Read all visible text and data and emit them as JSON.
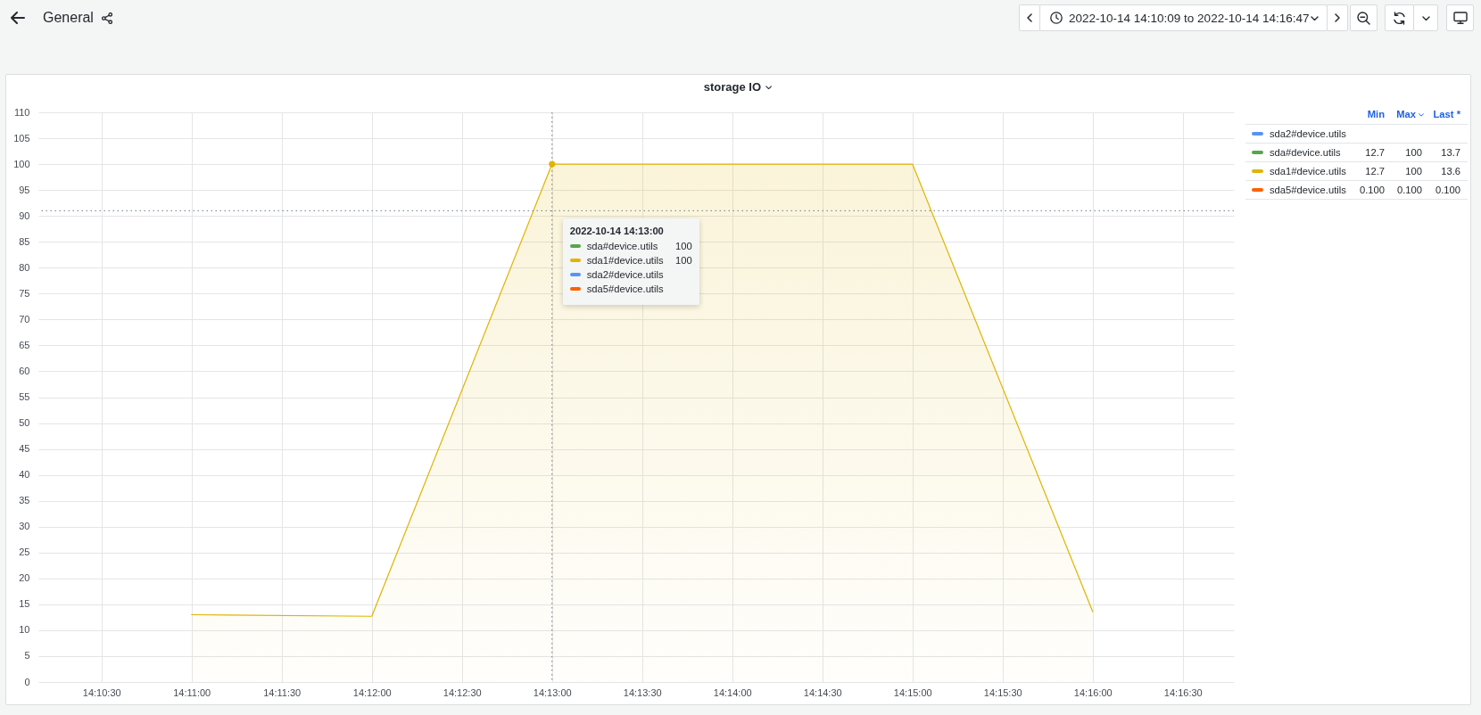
{
  "chart_data": {
    "type": "area",
    "title": "storage IO",
    "x": [
      "2022-10-14T14:11:00",
      "2022-10-14T14:12:00",
      "2022-10-14T14:13:00",
      "2022-10-14T14:14:00",
      "2022-10-14T14:15:00",
      "2022-10-14T14:16:00"
    ],
    "series": [
      {
        "name": "sda2#device.utils",
        "color": "#5794f2",
        "values": [
          null,
          null,
          null,
          null,
          null,
          null
        ]
      },
      {
        "name": "sda#device.utils",
        "color": "#56a64b",
        "values": [
          null,
          null,
          null,
          null,
          null,
          null
        ]
      },
      {
        "name": "sda1#device.utils",
        "color": "#e0b400",
        "values": [
          13,
          12.7,
          100,
          100,
          100,
          13.6
        ]
      },
      {
        "name": "sda5#device.utils",
        "color": "#fa6400",
        "values": [
          null,
          null,
          null,
          null,
          null,
          null
        ]
      }
    ],
    "xlim": [
      "2022-10-14T14:10:09",
      "2022-10-14T14:16:47"
    ],
    "xticks": [
      {
        "value": "2022-10-14T14:10:30",
        "label": "14:10:30"
      },
      {
        "value": "2022-10-14T14:11:00",
        "label": "14:11:00"
      },
      {
        "value": "2022-10-14T14:11:30",
        "label": "14:11:30"
      },
      {
        "value": "2022-10-14T14:12:00",
        "label": "14:12:00"
      },
      {
        "value": "2022-10-14T14:12:30",
        "label": "14:12:30"
      },
      {
        "value": "2022-10-14T14:13:00",
        "label": "14:13:00"
      },
      {
        "value": "2022-10-14T14:13:30",
        "label": "14:13:30"
      },
      {
        "value": "2022-10-14T14:14:00",
        "label": "14:14:00"
      },
      {
        "value": "2022-10-14T14:14:30",
        "label": "14:14:30"
      },
      {
        "value": "2022-10-14T14:15:00",
        "label": "14:15:00"
      },
      {
        "value": "2022-10-14T14:15:30",
        "label": "14:15:30"
      },
      {
        "value": "2022-10-14T14:16:00",
        "label": "14:16:00"
      },
      {
        "value": "2022-10-14T14:16:30",
        "label": "14:16:30"
      }
    ],
    "ylim": [
      0,
      110
    ],
    "yticks": [
      0,
      5,
      10,
      15,
      20,
      25,
      30,
      35,
      40,
      45,
      50,
      55,
      60,
      65,
      70,
      75,
      80,
      85,
      90,
      95,
      100,
      105,
      110
    ],
    "grid": true,
    "legend": "right",
    "ref_lines": [
      {
        "axis": "x",
        "value": "2022-10-14T14:13:00",
        "label": "2022-10-14 14:13:00",
        "color": "#6b7b8c",
        "line_style": "dotted"
      },
      {
        "axis": "y",
        "value": 91,
        "color": "#6b7b8c",
        "line_style": "dotted"
      }
    ],
    "annotations": [
      "General",
      "2022-10-14 14:10:09 to 2022-10-14 14:16:47",
      "Min",
      "Max",
      "Last *",
      "12.7",
      "100",
      "13.7",
      "12.7",
      "100",
      "13.6",
      "0.100",
      "0.100",
      "0.100",
      "100",
      "100"
    ]
  }
}
